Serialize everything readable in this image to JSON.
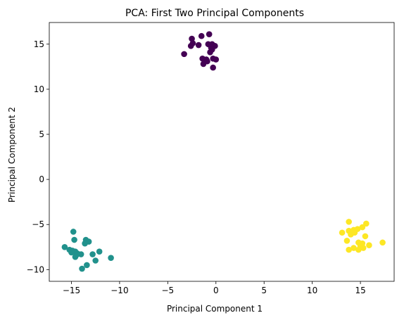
{
  "chart_data": {
    "type": "scatter",
    "title": "PCA: First Two Principal Components",
    "xlabel": "Principal Component 1",
    "ylabel": "Principal Component 2",
    "xlim": [
      -17.3,
      18.5
    ],
    "ylim": [
      -11.3,
      17.4
    ],
    "xticks": [
      -15,
      -10,
      -5,
      0,
      5,
      10,
      15
    ],
    "yticks": [
      -10,
      -5,
      0,
      5,
      10,
      15
    ],
    "grid": false,
    "series": [
      {
        "color": "#440154",
        "points": [
          [
            -2.5,
            15.6
          ],
          [
            -1.5,
            15.9
          ],
          [
            -0.7,
            16.1
          ],
          [
            -2.4,
            15.1
          ],
          [
            -2.6,
            14.8
          ],
          [
            -1.8,
            14.9
          ],
          [
            -0.8,
            15.0
          ],
          [
            -0.4,
            15.0
          ],
          [
            -0.1,
            14.8
          ],
          [
            -0.5,
            14.6
          ],
          [
            -3.3,
            13.9
          ],
          [
            -0.6,
            14.1
          ],
          [
            -0.4,
            14.4
          ],
          [
            -1.4,
            13.4
          ],
          [
            -1.0,
            13.3
          ],
          [
            -0.3,
            13.4
          ],
          [
            0.0,
            13.3
          ],
          [
            -0.9,
            13.1
          ],
          [
            -1.3,
            12.8
          ],
          [
            -0.3,
            12.4
          ]
        ]
      },
      {
        "color": "#21918c",
        "points": [
          [
            -14.8,
            -5.8
          ],
          [
            -15.7,
            -7.5
          ],
          [
            -14.7,
            -6.7
          ],
          [
            -13.5,
            -6.7
          ],
          [
            -13.2,
            -6.9
          ],
          [
            -13.6,
            -7.1
          ],
          [
            -15.2,
            -7.8
          ],
          [
            -14.9,
            -7.9
          ],
          [
            -14.6,
            -8.0
          ],
          [
            -14.4,
            -8.2
          ],
          [
            -14.5,
            -8.4
          ],
          [
            -14.0,
            -8.3
          ],
          [
            -14.6,
            -8.6
          ],
          [
            -12.1,
            -8.0
          ],
          [
            -12.8,
            -8.3
          ],
          [
            -10.9,
            -8.7
          ],
          [
            -12.5,
            -9.0
          ],
          [
            -13.4,
            -9.5
          ],
          [
            -13.9,
            -9.9
          ],
          [
            -15.0,
            -8.1
          ]
        ]
      },
      {
        "color": "#fde725",
        "points": [
          [
            13.8,
            -4.7
          ],
          [
            15.6,
            -4.9
          ],
          [
            13.1,
            -5.9
          ],
          [
            13.8,
            -5.7
          ],
          [
            14.3,
            -5.6
          ],
          [
            14.7,
            -5.5
          ],
          [
            15.2,
            -5.3
          ],
          [
            14.0,
            -6.1
          ],
          [
            14.4,
            -5.9
          ],
          [
            15.5,
            -6.3
          ],
          [
            13.6,
            -6.8
          ],
          [
            14.8,
            -7.0
          ],
          [
            15.2,
            -7.1
          ],
          [
            17.3,
            -7.0
          ],
          [
            15.9,
            -7.3
          ],
          [
            15.0,
            -7.4
          ],
          [
            14.3,
            -7.6
          ],
          [
            13.8,
            -7.8
          ],
          [
            14.8,
            -7.8
          ],
          [
            15.3,
            -7.6
          ]
        ]
      }
    ]
  }
}
